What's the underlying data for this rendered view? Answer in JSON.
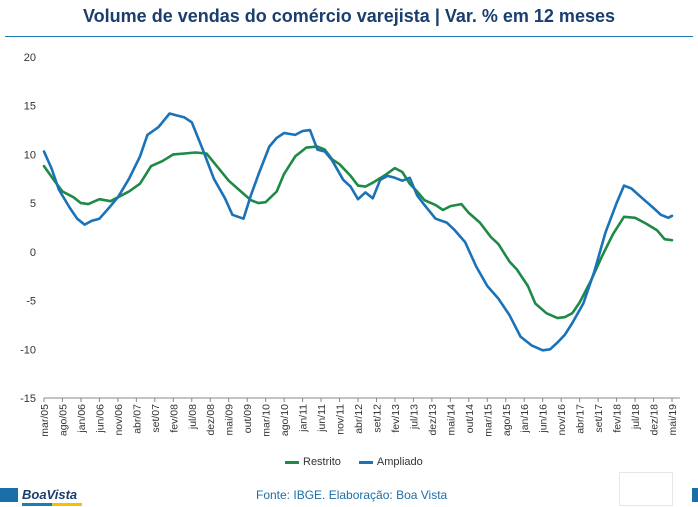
{
  "title": "Volume de vendas do comércio varejista | Var. % em 12 meses",
  "source": "Fonte: IBGE. Elaboração: Boa Vista",
  "logo": "BoaVista",
  "colors": {
    "restrito": "#1e8a45",
    "ampliado": "#1a72b8",
    "title": "#1a3e6e"
  },
  "chart_data": {
    "type": "line",
    "ylim": [
      -15,
      20
    ],
    "yticks": [
      -15,
      -10,
      -5,
      0,
      5,
      10,
      15,
      20
    ],
    "xticks": [
      "mar/05",
      "ago/05",
      "jan/06",
      "jun/06",
      "nov/06",
      "abr/07",
      "set/07",
      "fev/08",
      "jul/08",
      "dez/08",
      "mai/09",
      "out/09",
      "mar/10",
      "ago/10",
      "jan/11",
      "jun/11",
      "nov/11",
      "abr/12",
      "set/12",
      "fev/13",
      "jul/13",
      "dez/13",
      "mai/14",
      "out/14",
      "mar/15",
      "ago/15",
      "jan/16",
      "jun/16",
      "nov/16",
      "abr/17",
      "set/17",
      "fev/18",
      "jul/18",
      "dez/18",
      "mai/19"
    ],
    "series": [
      {
        "name": "Restrito",
        "key": "restrito",
        "points": [
          [
            0,
            8.8
          ],
          [
            3,
            7.2
          ],
          [
            5,
            6.2
          ],
          [
            8,
            5.6
          ],
          [
            10,
            5.0
          ],
          [
            12,
            4.9
          ],
          [
            15,
            5.4
          ],
          [
            18,
            5.2
          ],
          [
            20,
            5.6
          ],
          [
            23,
            6.2
          ],
          [
            26,
            7.0
          ],
          [
            29,
            8.8
          ],
          [
            32,
            9.3
          ],
          [
            35,
            10.0
          ],
          [
            38,
            10.1
          ],
          [
            41,
            10.2
          ],
          [
            44,
            10.1
          ],
          [
            47,
            8.7
          ],
          [
            50,
            7.3
          ],
          [
            53,
            6.3
          ],
          [
            56,
            5.3
          ],
          [
            58,
            5.0
          ],
          [
            60,
            5.1
          ],
          [
            63,
            6.2
          ],
          [
            65,
            8.0
          ],
          [
            68,
            9.8
          ],
          [
            71,
            10.7
          ],
          [
            74,
            10.8
          ],
          [
            76,
            10.5
          ],
          [
            78,
            9.5
          ],
          [
            80,
            9.0
          ],
          [
            83,
            7.8
          ],
          [
            85,
            6.8
          ],
          [
            87,
            6.7
          ],
          [
            89,
            7.1
          ],
          [
            92,
            7.8
          ],
          [
            95,
            8.6
          ],
          [
            97,
            8.2
          ],
          [
            99,
            7.0
          ],
          [
            101,
            6.2
          ],
          [
            103,
            5.3
          ],
          [
            106,
            4.8
          ],
          [
            108,
            4.3
          ],
          [
            110,
            4.7
          ],
          [
            113,
            4.9
          ],
          [
            115,
            4.0
          ],
          [
            118,
            3.0
          ],
          [
            121,
            1.5
          ],
          [
            123,
            0.8
          ],
          [
            126,
            -1.0
          ],
          [
            128,
            -1.8
          ],
          [
            131,
            -3.5
          ],
          [
            133,
            -5.3
          ],
          [
            136,
            -6.3
          ],
          [
            139,
            -6.8
          ],
          [
            141,
            -6.7
          ],
          [
            143,
            -6.3
          ],
          [
            145,
            -5.2
          ],
          [
            148,
            -3.0
          ],
          [
            151,
            -0.5
          ],
          [
            154,
            1.8
          ],
          [
            157,
            3.6
          ],
          [
            160,
            3.5
          ],
          [
            163,
            2.9
          ],
          [
            166,
            2.2
          ],
          [
            168,
            1.3
          ],
          [
            170,
            1.2
          ]
        ]
      },
      {
        "name": "Ampliado",
        "key": "ampliado",
        "points": [
          [
            0,
            10.3
          ],
          [
            2,
            8.6
          ],
          [
            4,
            6.4
          ],
          [
            7,
            4.5
          ],
          [
            9,
            3.4
          ],
          [
            11,
            2.8
          ],
          [
            13,
            3.2
          ],
          [
            15,
            3.4
          ],
          [
            18,
            4.7
          ],
          [
            20,
            5.6
          ],
          [
            23,
            7.5
          ],
          [
            26,
            9.8
          ],
          [
            28,
            12.0
          ],
          [
            31,
            12.8
          ],
          [
            34,
            14.2
          ],
          [
            36,
            14.0
          ],
          [
            38,
            13.8
          ],
          [
            40,
            13.3
          ],
          [
            43,
            10.5
          ],
          [
            46,
            7.5
          ],
          [
            49,
            5.5
          ],
          [
            51,
            3.8
          ],
          [
            54,
            3.4
          ],
          [
            56,
            5.8
          ],
          [
            58,
            7.9
          ],
          [
            61,
            10.8
          ],
          [
            63,
            11.7
          ],
          [
            65,
            12.2
          ],
          [
            68,
            12.0
          ],
          [
            70,
            12.4
          ],
          [
            72,
            12.5
          ],
          [
            74,
            10.5
          ],
          [
            76,
            10.3
          ],
          [
            78,
            9.4
          ],
          [
            81,
            7.4
          ],
          [
            83,
            6.7
          ],
          [
            85,
            5.4
          ],
          [
            87,
            6.1
          ],
          [
            89,
            5.5
          ],
          [
            91,
            7.4
          ],
          [
            93,
            7.8
          ],
          [
            95,
            7.6
          ],
          [
            97,
            7.3
          ],
          [
            99,
            7.6
          ],
          [
            101,
            5.8
          ],
          [
            103,
            4.8
          ],
          [
            106,
            3.4
          ],
          [
            109,
            3.0
          ],
          [
            111,
            2.3
          ],
          [
            114,
            1.0
          ],
          [
            117,
            -1.5
          ],
          [
            120,
            -3.5
          ],
          [
            123,
            -4.8
          ],
          [
            126,
            -6.5
          ],
          [
            129,
            -8.7
          ],
          [
            132,
            -9.6
          ],
          [
            135,
            -10.1
          ],
          [
            137,
            -10.0
          ],
          [
            139,
            -9.3
          ],
          [
            141,
            -8.5
          ],
          [
            143,
            -7.3
          ],
          [
            146,
            -5.3
          ],
          [
            149,
            -2.0
          ],
          [
            152,
            2.0
          ],
          [
            155,
            5.0
          ],
          [
            157,
            6.8
          ],
          [
            159,
            6.5
          ],
          [
            162,
            5.5
          ],
          [
            165,
            4.5
          ],
          [
            167,
            3.8
          ],
          [
            169,
            3.5
          ],
          [
            170,
            3.7
          ]
        ]
      }
    ]
  }
}
